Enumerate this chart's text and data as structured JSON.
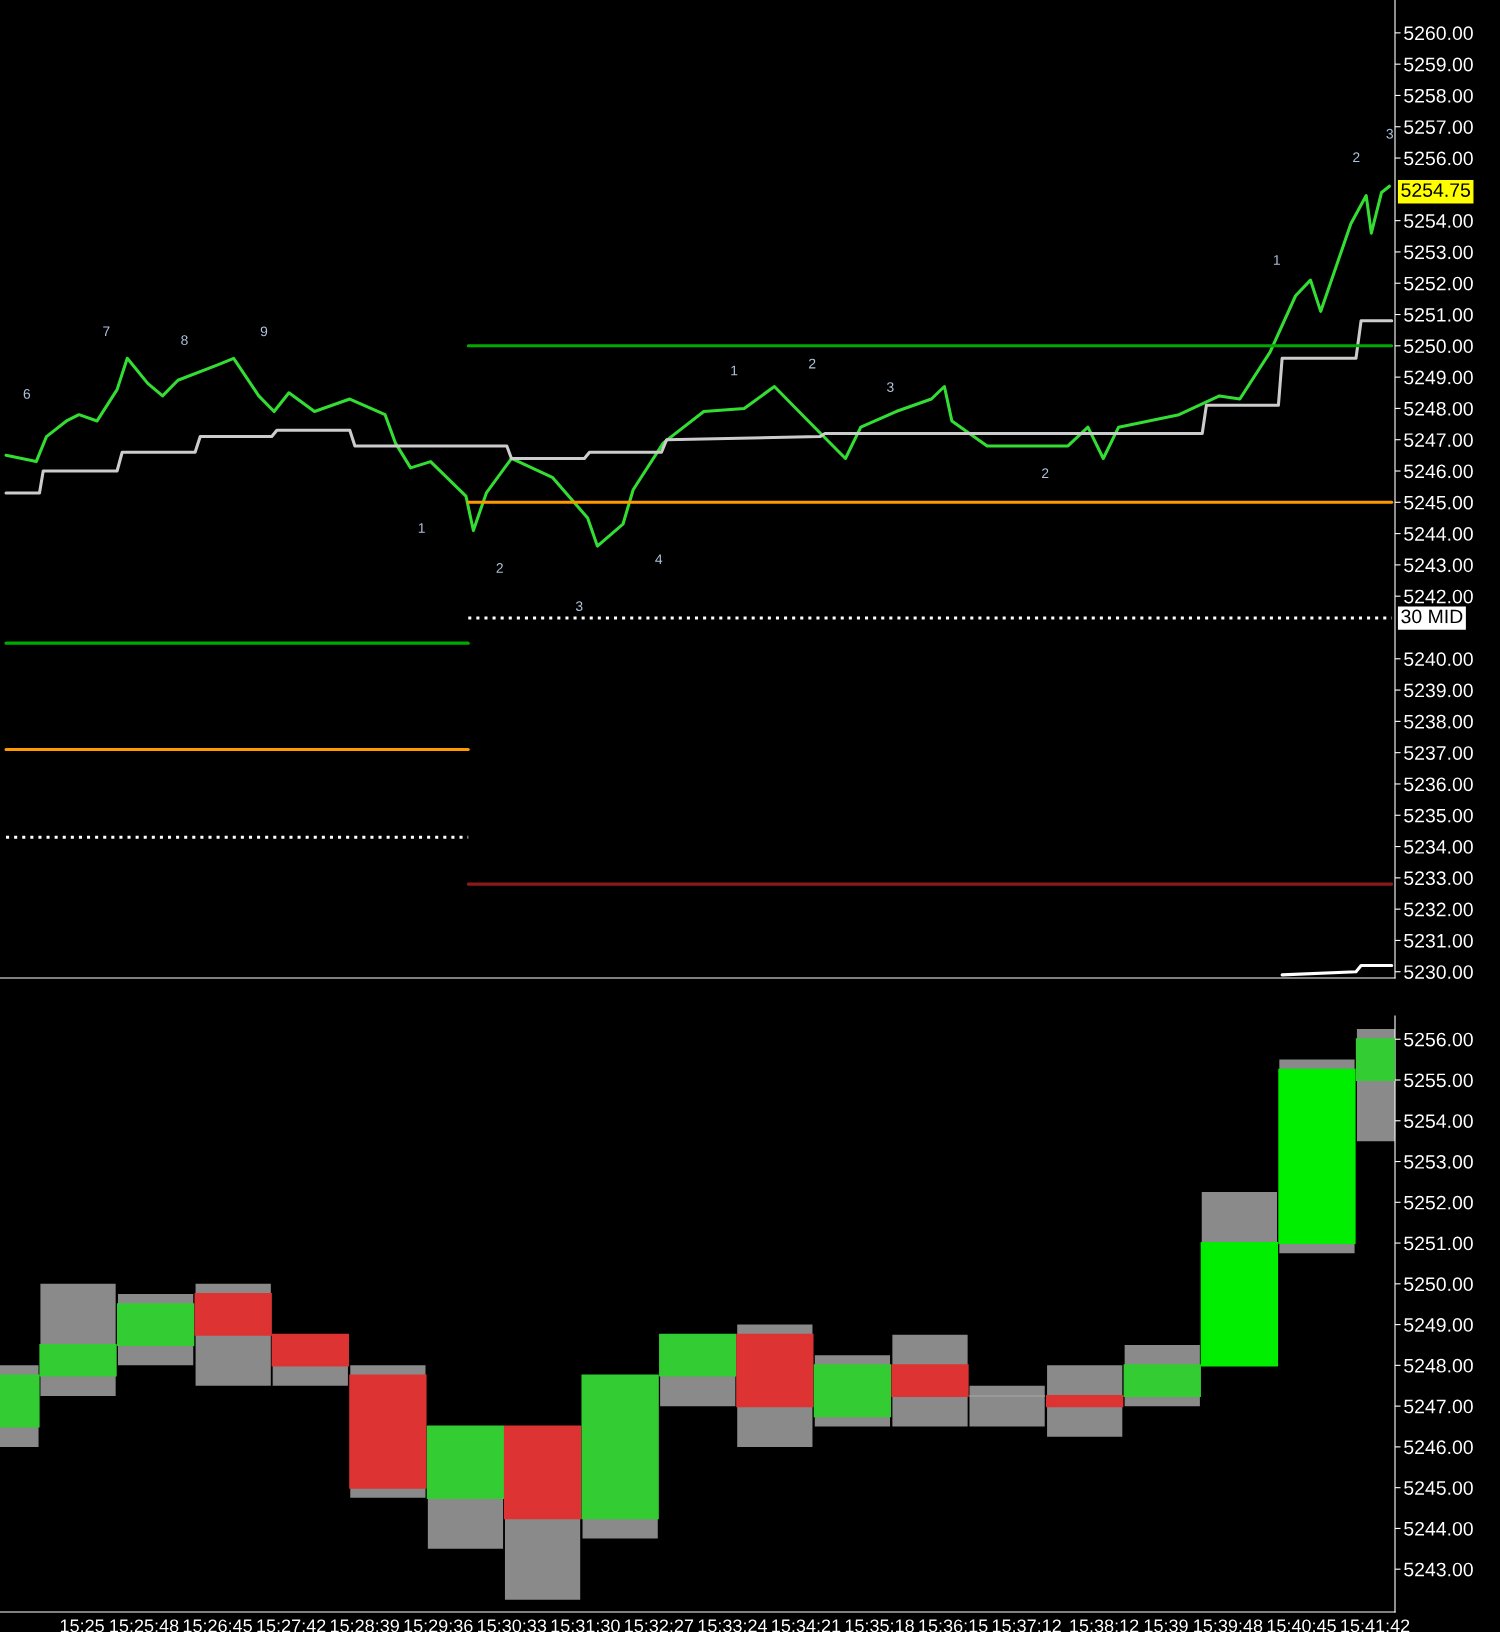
{
  "chart_data": [
    {
      "type": "line",
      "xlim": [
        15.399,
        15.6993
      ],
      "tick_labels": "y",
      "ylim": [
        5229.8,
        5261.05
      ],
      "yticks": [
        {
          "value": 5230,
          "label": "5230.00"
        },
        {
          "value": 5231,
          "label": "5231.00"
        },
        {
          "value": 5232,
          "label": "5232.00"
        },
        {
          "value": 5233,
          "label": "5233.00"
        },
        {
          "value": 5234,
          "label": "5234.00"
        },
        {
          "value": 5235,
          "label": "5235.00"
        },
        {
          "value": 5236,
          "label": "5236.00"
        },
        {
          "value": 5237,
          "label": "5237.00"
        },
        {
          "value": 5238,
          "label": "5238.00"
        },
        {
          "value": 5239,
          "label": "5239.00"
        },
        {
          "value": 5240,
          "label": "5240.00"
        },
        {
          "value": 5242,
          "label": "5242.00"
        },
        {
          "value": 5243,
          "label": "5243.00"
        },
        {
          "value": 5244,
          "label": "5244.00"
        },
        {
          "value": 5245,
          "label": "5245.00"
        },
        {
          "value": 5246,
          "label": "5246.00"
        },
        {
          "value": 5247,
          "label": "5247.00"
        },
        {
          "value": 5248,
          "label": "5248.00"
        },
        {
          "value": 5249,
          "label": "5249.00"
        },
        {
          "value": 5250,
          "label": "5250.00"
        },
        {
          "value": 5251,
          "label": "5251.00"
        },
        {
          "value": 5252,
          "label": "5252.00"
        },
        {
          "value": 5253,
          "label": "5253.00"
        },
        {
          "value": 5254,
          "label": "5254.00"
        },
        {
          "value": 5256,
          "label": "5256.00"
        },
        {
          "value": 5257,
          "label": "5257.00"
        },
        {
          "value": 5258,
          "label": "5258.00"
        },
        {
          "value": 5259,
          "label": "5259.00"
        },
        {
          "value": 5260,
          "label": "5260.00"
        }
      ],
      "series": [
        {
          "color": "#33dd33",
          "line_style": "solid",
          "x": [
            15.4003,
            15.4068,
            15.409,
            15.4133,
            15.416,
            15.4199,
            15.4242,
            15.4264,
            15.4308,
            15.434,
            15.4373,
            15.446,
            15.4493,
            15.4547,
            15.458,
            15.4612,
            15.4667,
            15.4743,
            15.4819,
            15.4841,
            15.4874,
            15.4917,
            15.4993,
            15.5009,
            15.5037,
            15.5091,
            15.5179,
            15.5255,
            15.5276,
            15.5331,
            15.5353,
            15.5418,
            15.5505,
            15.5592,
            15.5657,
            15.5723,
            15.581,
            15.5843,
            15.5919,
            15.5995,
            15.6023,
            15.6039,
            15.6115,
            15.6289,
            15.6332,
            15.6365,
            15.6398,
            15.6528,
            15.6615,
            15.6659,
            15.6724,
            15.6779,
            15.6811,
            15.6833,
            15.6898,
            15.6931,
            15.6942,
            15.6964,
            15.6981
          ],
          "values": [
            5246.5,
            5246.3,
            5247.1,
            5247.6,
            5247.8,
            5247.6,
            5248.6,
            5249.6,
            5248.8,
            5248.4,
            5248.9,
            5249.4,
            5249.6,
            5248.4,
            5247.9,
            5248.5,
            5247.9,
            5248.3,
            5247.8,
            5246.9,
            5246.1,
            5246.3,
            5245.2,
            5244.1,
            5245.3,
            5246.4,
            5245.8,
            5244.5,
            5243.6,
            5244.3,
            5245.4,
            5246.9,
            5247.9,
            5248.0,
            5248.7,
            5247.7,
            5246.4,
            5247.4,
            5247.9,
            5248.3,
            5248.7,
            5247.6,
            5246.8,
            5246.8,
            5247.4,
            5246.4,
            5247.4,
            5247.8,
            5248.4,
            5248.3,
            5249.8,
            5251.6,
            5252.1,
            5251.1,
            5253.9,
            5254.8,
            5253.6,
            5254.9,
            5255.1
          ]
        },
        {
          "color": "#cccccc",
          "line_style": "solid",
          "x": [
            15.4003,
            15.4075,
            15.4083,
            15.4242,
            15.4253,
            15.441,
            15.4421,
            15.4575,
            15.4586,
            15.4743,
            15.4754,
            15.5081,
            15.5091,
            15.5248,
            15.5259,
            15.5414,
            15.5425,
            15.5755,
            15.5766,
            15.6578,
            15.6587,
            15.6742,
            15.675,
            15.6909,
            15.692,
            15.6986
          ],
          "values": [
            5245.3,
            5245.3,
            5246.0,
            5246.0,
            5246.6,
            5246.6,
            5247.1,
            5247.1,
            5247.3,
            5247.3,
            5246.8,
            5246.8,
            5246.4,
            5246.4,
            5246.6,
            5246.6,
            5247.0,
            5247.1,
            5247.2,
            5247.2,
            5248.1,
            5248.1,
            5249.6,
            5249.6,
            5250.8,
            5250.8
          ]
        },
        {
          "color": "#ffffff",
          "line_style": "solid",
          "x": [
            15.675,
            15.6909,
            15.692,
            15.6986
          ],
          "values": [
            5229.9,
            5230.0,
            5230.2,
            5230.2
          ]
        },
        {
          "color": "#ff9900",
          "line_style": "solid",
          "x": [
            15.4998,
            15.6986
          ],
          "values": [
            5245.0,
            5245.0
          ]
        },
        {
          "color": "#ff9900",
          "line_style": "solid",
          "x": [
            15.4003,
            15.4998
          ],
          "values": [
            5237.1,
            5237.1
          ]
        },
        {
          "color": "#00aa00",
          "line_style": "solid",
          "x": [
            15.4998,
            15.6986
          ],
          "values": [
            5250.0,
            5250.0
          ]
        },
        {
          "color": "#00aa00",
          "line_style": "solid",
          "x": [
            15.4003,
            15.4998
          ],
          "values": [
            5240.5,
            5240.5
          ]
        },
        {
          "color": "#8b1a1a",
          "line_style": "solid",
          "x": [
            15.4998,
            15.6986
          ],
          "values": [
            5232.8,
            5232.8
          ]
        },
        {
          "name": "30 MID",
          "color": "#ffffff",
          "line_style": "dotted",
          "x": [
            15.4998,
            15.6986
          ],
          "values": [
            5241.3,
            5241.3
          ]
        },
        {
          "color": "#ffffff",
          "line_style": "dotted",
          "x": [
            15.4003,
            15.4998
          ],
          "values": [
            5234.3,
            5234.3
          ]
        }
      ],
      "annotations": [
        "6",
        "7",
        "8",
        "9",
        "1",
        "2",
        "3",
        "4",
        "1",
        "2",
        "3",
        "2",
        "1",
        "2",
        "3",
        "5254.75"
      ]
    },
    {
      "type": "candlestick",
      "xlim": [
        15.399,
        15.6993
      ],
      "ylim": [
        5241.95,
        5256.57
      ],
      "x": [
        15.3992,
        15.4158,
        15.4325,
        15.4492,
        15.4658,
        15.4825,
        15.4992,
        15.5158,
        15.5325,
        15.5492,
        15.5658,
        15.5825,
        15.5992,
        15.6158,
        15.6325,
        15.6492,
        15.6658,
        15.6825,
        15.6992
      ],
      "ohlc": [
        [
          5246.5,
          5248,
          5246,
          5247.75
        ],
        [
          5247.75,
          5250,
          5247.25,
          5248.5
        ],
        [
          5248.5,
          5249.75,
          5248,
          5249.5
        ],
        [
          5249.75,
          5250,
          5247.5,
          5248.75
        ],
        [
          5248.75,
          5248.75,
          5247.5,
          5248
        ],
        [
          5247.75,
          5248,
          5244.75,
          5245
        ],
        [
          5244.75,
          5246.5,
          5243.5,
          5246.5
        ],
        [
          5246.5,
          5246.5,
          5242.25,
          5244.25
        ],
        [
          5244.25,
          5247.75,
          5243.75,
          5247.75
        ],
        [
          5247.75,
          5248.75,
          5247,
          5248.75
        ],
        [
          5248.75,
          5249,
          5246,
          5247
        ],
        [
          5246.75,
          5248.25,
          5246.5,
          5248
        ],
        [
          5248,
          5248.75,
          5246.5,
          5247.25
        ],
        [
          5247.25,
          5247.5,
          5246.5,
          5247.25
        ],
        [
          5247.25,
          5248,
          5246.25,
          5247
        ],
        [
          5247.25,
          5248.5,
          5247,
          5248
        ],
        [
          5248,
          5252.25,
          5248,
          5251
        ],
        [
          5251,
          5255.5,
          5250.75,
          5255.25
        ],
        [
          5255,
          5256.25,
          5253.5,
          5256
        ]
      ],
      "colors": [
        "#33cc33",
        "#33cc33",
        "#33cc33",
        "#dd3333",
        "#dd3333",
        "#dd3333",
        "#33cc33",
        "#dd3333",
        "#33cc33",
        "#33cc33",
        "#dd3333",
        "#33cc33",
        "#dd3333",
        "#999999",
        "#dd3333",
        "#33cc33",
        "#00ee00",
        "#00ee00",
        "#33cc33"
      ],
      "xticks": [
        {
          "value": 15.41667,
          "label": "15:25"
        },
        {
          "value": 15.43,
          "label": "15:25:48"
        },
        {
          "value": 15.44583,
          "label": "15:26:45"
        },
        {
          "value": 15.46167,
          "label": "15:27:42"
        },
        {
          "value": 15.4775,
          "label": "15:28:39"
        },
        {
          "value": 15.49333,
          "label": "15:29:36"
        },
        {
          "value": 15.50917,
          "label": "15:30:33"
        },
        {
          "value": 15.525,
          "label": "15:31:30"
        },
        {
          "value": 15.54083,
          "label": "15:32:27"
        },
        {
          "value": 15.55667,
          "label": "15:33:24"
        },
        {
          "value": 15.5725,
          "label": "15:34:21"
        },
        {
          "value": 15.58833,
          "label": "15:35:18"
        },
        {
          "value": 15.60417,
          "label": "15:36:15"
        },
        {
          "value": 15.62,
          "label": "15:37:12"
        },
        {
          "value": 15.63667,
          "label": "15:38:12"
        },
        {
          "value": 15.65,
          "label": "15:39"
        },
        {
          "value": 15.66333,
          "label": "15:39:48"
        },
        {
          "value": 15.67917,
          "label": "15:40:45"
        },
        {
          "value": 15.695,
          "label": "15:41:42"
        }
      ],
      "yticks": [
        {
          "value": 5243,
          "label": "5243.00"
        },
        {
          "value": 5244,
          "label": "5244.00"
        },
        {
          "value": 5245,
          "label": "5245.00"
        },
        {
          "value": 5246,
          "label": "5246.00"
        },
        {
          "value": 5247,
          "label": "5247.00"
        },
        {
          "value": 5248,
          "label": "5248.00"
        },
        {
          "value": 5249,
          "label": "5249.00"
        },
        {
          "value": 5250,
          "label": "5250.00"
        },
        {
          "value": 5251,
          "label": "5251.00"
        },
        {
          "value": 5252,
          "label": "5252.00"
        },
        {
          "value": 5253,
          "label": "5253.00"
        },
        {
          "value": 5254,
          "label": "5254.00"
        },
        {
          "value": 5255,
          "label": "5255.00"
        },
        {
          "value": 5256,
          "label": "5256.00"
        }
      ]
    }
  ]
}
